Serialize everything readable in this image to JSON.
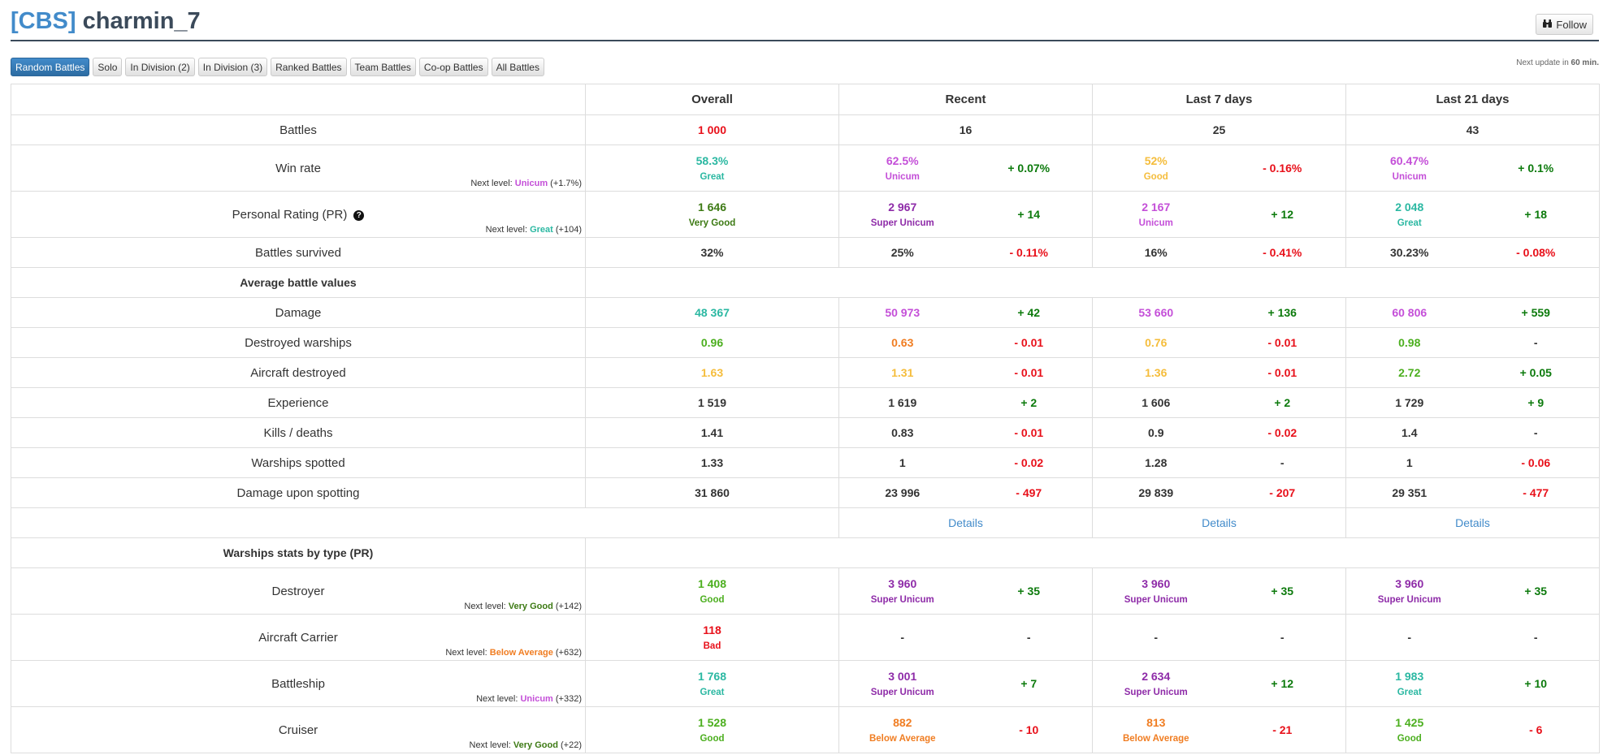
{
  "header": {
    "clan_tag": "[CBS]",
    "player_name": "charmin_7",
    "follow_label": "Follow",
    "follow_icon": "binoculars-icon"
  },
  "tabs": [
    {
      "label": "Random Battles",
      "active": true
    },
    {
      "label": "Solo"
    },
    {
      "label": "In Division (2)"
    },
    {
      "label": "In Division (3)"
    },
    {
      "label": "Ranked Battles"
    },
    {
      "label": "Team Battles"
    },
    {
      "label": "Co-op Battles"
    },
    {
      "label": "All Battles"
    }
  ],
  "next_update": {
    "prefix": "Next update in ",
    "value": "60 min."
  },
  "columns": [
    "Overall",
    "Recent",
    "Last 7 days",
    "Last 21 days"
  ],
  "rows": [
    {
      "type": "stat",
      "label": "Battles",
      "overall": {
        "value": "1 000",
        "color": "#e8101a"
      },
      "periods": [
        {
          "value": "16",
          "color": "#333"
        },
        {
          "value": "25",
          "color": "#333"
        },
        {
          "value": "43",
          "color": "#333"
        }
      ],
      "merged": true
    },
    {
      "type": "stat",
      "label": "Win rate",
      "next_level": {
        "prefix": "Next level: ",
        "level": "Unicum",
        "level_color": "#c44fd8",
        "delta": " (+1.7%)"
      },
      "overall": {
        "value": "58.3%",
        "color": "#2bb8a2",
        "rating": "Great",
        "rating_color": "#2bb8a2"
      },
      "periods": [
        {
          "value": "62.5%",
          "color": "#c44fd8",
          "rating": "Unicum",
          "rating_color": "#c44fd8",
          "delta": "+ 0.07%",
          "delta_color": "#0c7a0c"
        },
        {
          "value": "52%",
          "color": "#f5bd3c",
          "rating": "Good",
          "rating_color": "#f5bd3c",
          "delta": "- 0.16%",
          "delta_color": "#e8101a"
        },
        {
          "value": "60.47%",
          "color": "#c44fd8",
          "rating": "Unicum",
          "rating_color": "#c44fd8",
          "delta": "+ 0.1%",
          "delta_color": "#0c7a0c"
        }
      ]
    },
    {
      "type": "stat",
      "label": "Personal Rating (PR)",
      "help": true,
      "next_level": {
        "prefix": "Next level: ",
        "level": "Great",
        "level_color": "#2bb8a2",
        "delta": " (+104)"
      },
      "overall": {
        "value": "1 646",
        "color": "#3d7a14",
        "rating": "Very Good",
        "rating_color": "#3d7a14"
      },
      "periods": [
        {
          "value": "2 967",
          "color": "#8e2ba8",
          "rating": "Super Unicum",
          "rating_color": "#8e2ba8",
          "delta": "+ 14",
          "delta_color": "#0c7a0c"
        },
        {
          "value": "2 167",
          "color": "#c44fd8",
          "rating": "Unicum",
          "rating_color": "#c44fd8",
          "delta": "+ 12",
          "delta_color": "#0c7a0c"
        },
        {
          "value": "2 048",
          "color": "#2bb8a2",
          "rating": "Great",
          "rating_color": "#2bb8a2",
          "delta": "+ 18",
          "delta_color": "#0c7a0c"
        }
      ]
    },
    {
      "type": "stat",
      "label": "Battles survived",
      "overall": {
        "value": "32%",
        "color": "#333"
      },
      "periods": [
        {
          "value": "25%",
          "color": "#333",
          "delta": "- 0.11%",
          "delta_color": "#e8101a"
        },
        {
          "value": "16%",
          "color": "#333",
          "delta": "- 0.41%",
          "delta_color": "#e8101a"
        },
        {
          "value": "30.23%",
          "color": "#333",
          "delta": "- 0.08%",
          "delta_color": "#e8101a"
        }
      ]
    },
    {
      "type": "section",
      "label": "Average battle values"
    },
    {
      "type": "stat",
      "label": "Damage",
      "overall": {
        "value": "48 367",
        "color": "#2bb8a2"
      },
      "periods": [
        {
          "value": "50 973",
          "color": "#c44fd8",
          "delta": "+ 42",
          "delta_color": "#0c7a0c"
        },
        {
          "value": "53 660",
          "color": "#c44fd8",
          "delta": "+ 136",
          "delta_color": "#0c7a0c"
        },
        {
          "value": "60 806",
          "color": "#c44fd8",
          "delta": "+ 559",
          "delta_color": "#0c7a0c"
        }
      ]
    },
    {
      "type": "stat",
      "label": "Destroyed warships",
      "overall": {
        "value": "0.96",
        "color": "#4caf1f"
      },
      "periods": [
        {
          "value": "0.63",
          "color": "#f07d22",
          "delta": "- 0.01",
          "delta_color": "#e8101a"
        },
        {
          "value": "0.76",
          "color": "#f5bd3c",
          "delta": "- 0.01",
          "delta_color": "#e8101a"
        },
        {
          "value": "0.98",
          "color": "#4caf1f",
          "delta": "-",
          "delta_color": "#333"
        }
      ]
    },
    {
      "type": "stat",
      "label": "Aircraft destroyed",
      "overall": {
        "value": "1.63",
        "color": "#f5bd3c"
      },
      "periods": [
        {
          "value": "1.31",
          "color": "#f5bd3c",
          "delta": "- 0.01",
          "delta_color": "#e8101a"
        },
        {
          "value": "1.36",
          "color": "#f5bd3c",
          "delta": "- 0.01",
          "delta_color": "#e8101a"
        },
        {
          "value": "2.72",
          "color": "#4caf1f",
          "delta": "+ 0.05",
          "delta_color": "#0c7a0c"
        }
      ]
    },
    {
      "type": "stat",
      "label": "Experience",
      "overall": {
        "value": "1 519",
        "color": "#333"
      },
      "periods": [
        {
          "value": "1 619",
          "color": "#333",
          "delta": "+ 2",
          "delta_color": "#0c7a0c"
        },
        {
          "value": "1 606",
          "color": "#333",
          "delta": "+ 2",
          "delta_color": "#0c7a0c"
        },
        {
          "value": "1 729",
          "color": "#333",
          "delta": "+ 9",
          "delta_color": "#0c7a0c"
        }
      ]
    },
    {
      "type": "stat",
      "label": "Kills / deaths",
      "overall": {
        "value": "1.41",
        "color": "#333"
      },
      "periods": [
        {
          "value": "0.83",
          "color": "#333",
          "delta": "- 0.01",
          "delta_color": "#e8101a"
        },
        {
          "value": "0.9",
          "color": "#333",
          "delta": "- 0.02",
          "delta_color": "#e8101a"
        },
        {
          "value": "1.4",
          "color": "#333",
          "delta": "-",
          "delta_color": "#333"
        }
      ]
    },
    {
      "type": "stat",
      "label": "Warships spotted",
      "overall": {
        "value": "1.33",
        "color": "#333"
      },
      "periods": [
        {
          "value": "1",
          "color": "#333",
          "delta": "- 0.02",
          "delta_color": "#e8101a"
        },
        {
          "value": "1.28",
          "color": "#333",
          "delta": "-",
          "delta_color": "#333"
        },
        {
          "value": "1",
          "color": "#333",
          "delta": "- 0.06",
          "delta_color": "#e8101a"
        }
      ]
    },
    {
      "type": "stat",
      "label": "Damage upon spotting",
      "overall": {
        "value": "31 860",
        "color": "#333"
      },
      "periods": [
        {
          "value": "23 996",
          "color": "#333",
          "delta": "- 497",
          "delta_color": "#e8101a"
        },
        {
          "value": "29 839",
          "color": "#333",
          "delta": "- 207",
          "delta_color": "#e8101a"
        },
        {
          "value": "29 351",
          "color": "#333",
          "delta": "- 477",
          "delta_color": "#e8101a"
        }
      ]
    },
    {
      "type": "details",
      "links": [
        "Details",
        "Details",
        "Details"
      ]
    },
    {
      "type": "section",
      "label": "Warships stats by type (PR)"
    },
    {
      "type": "stat",
      "label": "Destroyer",
      "next_level": {
        "prefix": "Next level: ",
        "level": "Very Good",
        "level_color": "#3d7a14",
        "delta": " (+142)"
      },
      "overall": {
        "value": "1 408",
        "color": "#4caf1f",
        "rating": "Good",
        "rating_color": "#4caf1f"
      },
      "periods": [
        {
          "value": "3 960",
          "color": "#8e2ba8",
          "rating": "Super Unicum",
          "rating_color": "#8e2ba8",
          "delta": "+ 35",
          "delta_color": "#0c7a0c"
        },
        {
          "value": "3 960",
          "color": "#8e2ba8",
          "rating": "Super Unicum",
          "rating_color": "#8e2ba8",
          "delta": "+ 35",
          "delta_color": "#0c7a0c"
        },
        {
          "value": "3 960",
          "color": "#8e2ba8",
          "rating": "Super Unicum",
          "rating_color": "#8e2ba8",
          "delta": "+ 35",
          "delta_color": "#0c7a0c"
        }
      ]
    },
    {
      "type": "stat",
      "label": "Aircraft Carrier",
      "next_level": {
        "prefix": "Next level: ",
        "level": "Below Average",
        "level_color": "#f07d22",
        "delta": " (+632)"
      },
      "overall": {
        "value": "118",
        "color": "#e8101a",
        "rating": "Bad",
        "rating_color": "#e8101a"
      },
      "periods": [
        {
          "value": "-",
          "color": "#333",
          "delta": "-",
          "delta_color": "#333"
        },
        {
          "value": "-",
          "color": "#333",
          "delta": "-",
          "delta_color": "#333"
        },
        {
          "value": "-",
          "color": "#333",
          "delta": "-",
          "delta_color": "#333"
        }
      ],
      "tall": true
    },
    {
      "type": "stat",
      "label": "Battleship",
      "next_level": {
        "prefix": "Next level: ",
        "level": "Unicum",
        "level_color": "#c44fd8",
        "delta": " (+332)"
      },
      "overall": {
        "value": "1 768",
        "color": "#2bb8a2",
        "rating": "Great",
        "rating_color": "#2bb8a2"
      },
      "periods": [
        {
          "value": "3 001",
          "color": "#8e2ba8",
          "rating": "Super Unicum",
          "rating_color": "#8e2ba8",
          "delta": "+ 7",
          "delta_color": "#0c7a0c"
        },
        {
          "value": "2 634",
          "color": "#8e2ba8",
          "rating": "Super Unicum",
          "rating_color": "#8e2ba8",
          "delta": "+ 12",
          "delta_color": "#0c7a0c"
        },
        {
          "value": "1 983",
          "color": "#2bb8a2",
          "rating": "Great",
          "rating_color": "#2bb8a2",
          "delta": "+ 10",
          "delta_color": "#0c7a0c"
        }
      ]
    },
    {
      "type": "stat",
      "label": "Cruiser",
      "next_level": {
        "prefix": "Next level: ",
        "level": "Very Good",
        "level_color": "#3d7a14",
        "delta": " (+22)"
      },
      "overall": {
        "value": "1 528",
        "color": "#4caf1f",
        "rating": "Good",
        "rating_color": "#4caf1f"
      },
      "periods": [
        {
          "value": "882",
          "color": "#f07d22",
          "rating": "Below Average",
          "rating_color": "#f07d22",
          "delta": "- 10",
          "delta_color": "#e8101a"
        },
        {
          "value": "813",
          "color": "#f07d22",
          "rating": "Below Average",
          "rating_color": "#f07d22",
          "delta": "- 21",
          "delta_color": "#e8101a"
        },
        {
          "value": "1 425",
          "color": "#4caf1f",
          "rating": "Good",
          "rating_color": "#4caf1f",
          "delta": "- 6",
          "delta_color": "#e8101a"
        }
      ]
    }
  ]
}
